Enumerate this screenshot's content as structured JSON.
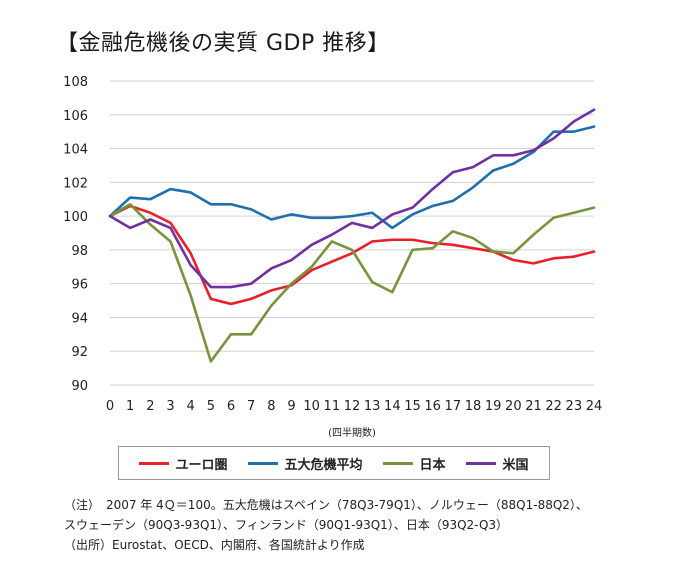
{
  "title": "【金融危機後の実質 GDP 推移】",
  "chart_data": {
    "type": "line",
    "xlabel": "(四半期数)",
    "ylim": [
      90,
      108
    ],
    "yticks": [
      90,
      92,
      94,
      96,
      98,
      100,
      102,
      104,
      106,
      108
    ],
    "x": [
      0,
      1,
      2,
      3,
      4,
      5,
      6,
      7,
      8,
      9,
      10,
      11,
      12,
      13,
      14,
      15,
      16,
      17,
      18,
      19,
      20,
      21,
      22,
      23,
      24
    ],
    "grid": true,
    "legend_position": "bottom",
    "series": [
      {
        "name": "ユーロ圏",
        "color": "#e8202a",
        "values": [
          100,
          100.6,
          100.2,
          99.6,
          97.8,
          95.1,
          94.8,
          95.1,
          95.6,
          95.9,
          96.8,
          97.3,
          97.8,
          98.5,
          98.6,
          98.6,
          98.4,
          98.3,
          98.1,
          97.9,
          97.4,
          97.2,
          97.5,
          97.6,
          97.9
        ]
      },
      {
        "name": "五大危機平均",
        "color": "#1f6fad",
        "values": [
          100,
          101.1,
          101.0,
          101.6,
          101.4,
          100.7,
          100.7,
          100.4,
          99.8,
          100.1,
          99.9,
          99.9,
          100.0,
          100.2,
          99.3,
          100.1,
          100.6,
          100.9,
          101.7,
          102.7,
          103.1,
          103.8,
          105.0,
          105.0,
          105.3
        ]
      },
      {
        "name": "日本",
        "color": "#77933c",
        "values": [
          100,
          100.7,
          99.5,
          98.5,
          95.3,
          91.4,
          93.0,
          93.0,
          94.7,
          96.0,
          97.0,
          98.5,
          98.0,
          96.1,
          95.5,
          98.0,
          98.1,
          99.1,
          98.7,
          97.9,
          97.8,
          98.9,
          99.9,
          100.2,
          100.5
        ]
      },
      {
        "name": "米国",
        "color": "#7030a0",
        "values": [
          100,
          99.3,
          99.8,
          99.3,
          97.1,
          95.8,
          95.8,
          96.0,
          96.9,
          97.4,
          98.3,
          98.9,
          99.6,
          99.3,
          100.1,
          100.5,
          101.6,
          102.6,
          102.9,
          103.6,
          103.6,
          103.9,
          104.6,
          105.6,
          106.3
        ]
      }
    ]
  },
  "notes": [
    "（注）　2007 年 4Ｑ＝100。五大危機はスペイン（78Q3-79Q1）、ノルウェー（88Q1-88Q2）、",
    "スウェーデン（90Q3-93Q1）、フィンランド（90Q1-93Q1）、日本（93Q2-Q3）",
    "（出所）Eurostat、OECD、内閣府、各国統計より作成"
  ]
}
